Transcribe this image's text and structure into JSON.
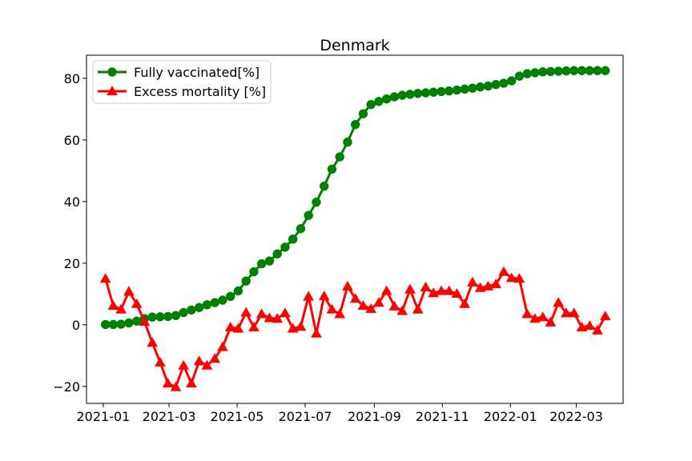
{
  "chart_data": {
    "type": "line",
    "title": "Denmark",
    "xlabel": "",
    "ylabel": "",
    "x_tick_labels": [
      "2021-01",
      "2021-03",
      "2021-05",
      "2021-07",
      "2021-09",
      "2021-11",
      "2022-01",
      "2022-03"
    ],
    "x_ticks": [
      "2021-01-01",
      "2021-03-01",
      "2021-05-01",
      "2021-07-01",
      "2021-09-01",
      "2021-11-01",
      "2022-01-01",
      "2022-03-01"
    ],
    "xlim": [
      "2020-12-17",
      "2022-04-12"
    ],
    "y_ticks": [
      -20,
      0,
      20,
      40,
      60,
      80
    ],
    "ylim": [
      -25.5,
      87.5
    ],
    "grid": false,
    "legend_position": "top-left",
    "dates": [
      "2021-01-03",
      "2021-01-10",
      "2021-01-17",
      "2021-01-24",
      "2021-01-31",
      "2021-02-07",
      "2021-02-14",
      "2021-02-21",
      "2021-02-28",
      "2021-03-07",
      "2021-03-14",
      "2021-03-21",
      "2021-03-28",
      "2021-04-04",
      "2021-04-11",
      "2021-04-18",
      "2021-04-25",
      "2021-05-02",
      "2021-05-09",
      "2021-05-16",
      "2021-05-23",
      "2021-05-30",
      "2021-06-06",
      "2021-06-13",
      "2021-06-20",
      "2021-06-27",
      "2021-07-04",
      "2021-07-11",
      "2021-07-18",
      "2021-07-25",
      "2021-08-01",
      "2021-08-08",
      "2021-08-15",
      "2021-08-22",
      "2021-08-29",
      "2021-09-05",
      "2021-09-12",
      "2021-09-19",
      "2021-09-26",
      "2021-10-03",
      "2021-10-10",
      "2021-10-17",
      "2021-10-24",
      "2021-10-31",
      "2021-11-07",
      "2021-11-14",
      "2021-11-21",
      "2021-11-28",
      "2021-12-05",
      "2021-12-12",
      "2021-12-19",
      "2021-12-26",
      "2022-01-02",
      "2022-01-09",
      "2022-01-16",
      "2022-01-23",
      "2022-01-30",
      "2022-02-06",
      "2022-02-13",
      "2022-02-20",
      "2022-02-27",
      "2022-03-06",
      "2022-03-13",
      "2022-03-20",
      "2022-03-27"
    ],
    "series": [
      {
        "name": "Fully vaccinated[%]",
        "color": "#008000",
        "marker": "circle",
        "values": [
          0.1,
          0.1,
          0.2,
          0.6,
          1.2,
          2.0,
          2.5,
          2.6,
          2.7,
          3.0,
          4.0,
          4.8,
          5.6,
          6.5,
          7.2,
          8.0,
          9.2,
          11.0,
          14.2,
          17.2,
          19.8,
          20.7,
          23.0,
          25.2,
          27.8,
          31.2,
          35.5,
          39.8,
          45.0,
          50.5,
          54.5,
          59.3,
          65.0,
          68.5,
          71.5,
          72.5,
          73.3,
          74.0,
          74.5,
          74.8,
          75.1,
          75.3,
          75.5,
          75.7,
          75.9,
          76.2,
          76.5,
          76.8,
          77.2,
          77.5,
          78.0,
          78.4,
          79.2,
          80.7,
          81.5,
          81.8,
          82.1,
          82.2,
          82.3,
          82.4,
          82.5,
          82.5,
          82.5,
          82.5,
          82.5
        ]
      },
      {
        "name": "Excess mortality [%]",
        "color": "#ff0000",
        "marker": "triangle",
        "values": [
          15.0,
          6.2,
          5.0,
          10.8,
          6.8,
          1.0,
          -5.8,
          -12.2,
          -19.0,
          -20.2,
          -13.2,
          -19.0,
          -11.8,
          -13.2,
          -11.0,
          -7.2,
          -0.8,
          -1.2,
          4.0,
          -0.8,
          3.5,
          2.2,
          2.0,
          3.8,
          -1.2,
          -0.6,
          9.2,
          -2.8,
          9.3,
          5.0,
          3.5,
          12.5,
          8.5,
          6.2,
          5.2,
          7.2,
          11.0,
          6.0,
          4.5,
          11.5,
          5.0,
          12.2,
          10.3,
          11.0,
          11.0,
          10.1,
          6.8,
          13.8,
          12.0,
          12.5,
          13.2,
          17.2,
          15.2,
          15.0,
          3.5,
          2.0,
          2.5,
          0.8,
          7.2,
          3.8,
          3.8,
          -0.8,
          -0.3,
          -1.8,
          2.8
        ]
      }
    ]
  }
}
